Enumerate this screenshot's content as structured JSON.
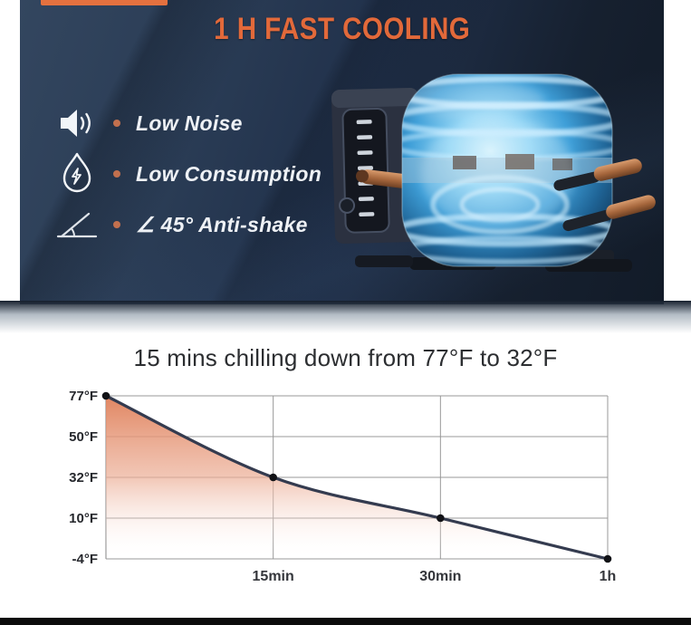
{
  "hero": {
    "title": "1 H FAST COOLING",
    "features": [
      {
        "icon": "speaker-icon",
        "label": "Low Noise"
      },
      {
        "icon": "droplet-bolt-icon",
        "label": "Low Consumption"
      },
      {
        "icon": "angle-45-icon",
        "label": "∠ 45° Anti-shake"
      }
    ]
  },
  "chart_data": {
    "type": "area",
    "title": "15 mins chilling down from 77°F to 32°F",
    "x": [
      0,
      15,
      30,
      60
    ],
    "x_unit": "minutes",
    "x_tick_labels": [
      "15min",
      "30min",
      "1h"
    ],
    "values": [
      77,
      32,
      10,
      -4
    ],
    "y_unit": "°F",
    "y_ticks": [
      77,
      50,
      32,
      10,
      -4
    ],
    "y_tick_labels": [
      "77°F",
      "50°F",
      "32°F",
      "10°F",
      "-4°F"
    ],
    "grid": true,
    "legend": "none",
    "line_color": "#343b4f",
    "fill_top_color": "#e0825c",
    "marker_color": "#111216",
    "grid_color": "#989898"
  },
  "colors": {
    "accent_orange": "#e4713f",
    "bullet_dot": "#c2704e",
    "footer_bar": "#0b0b0b"
  }
}
